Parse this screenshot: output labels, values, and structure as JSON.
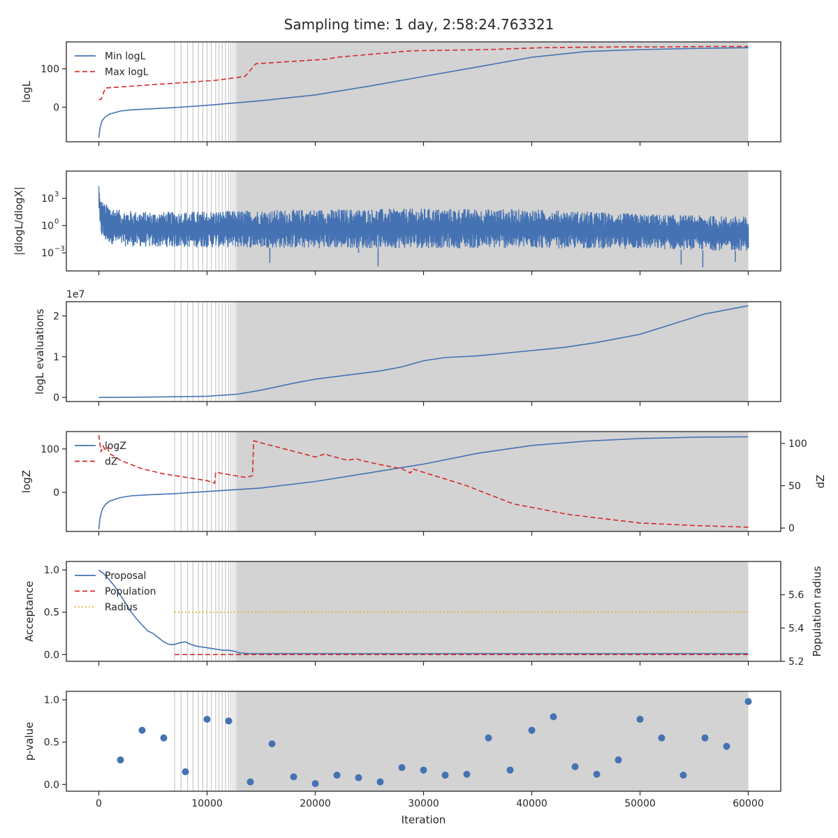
{
  "title": "Sampling time: 1 day, 2:58:24.763321",
  "colors": {
    "blue": "#4472b3",
    "red": "#d62728",
    "yellow": "#e8b020",
    "shade": "#d3d3d3",
    "vline": "#c8c8c8"
  },
  "chart_data": [
    {
      "type": "line",
      "ylabel": "logL",
      "xlim": [
        -3000,
        63000
      ],
      "ylim": [
        -90,
        170
      ],
      "yticks": [
        0,
        100
      ],
      "ytick_labels": [
        "0",
        "100"
      ],
      "shaded_region": [
        12800,
        60000
      ],
      "insertion_lines_x": [
        7000,
        7600,
        8200,
        8700,
        9200,
        9600,
        10000,
        10400,
        10800,
        11100,
        11400,
        11700,
        12000,
        12200,
        12400,
        12600,
        12750
      ],
      "legend": {
        "placement": "upper-left",
        "entries": [
          "Min logL",
          "Max logL"
        ]
      },
      "series": [
        {
          "name": "Min logL",
          "style": "solid",
          "color": "blue",
          "x": [
            0,
            100,
            300,
            600,
            1000,
            2000,
            3000,
            5000,
            7000,
            10000,
            15000,
            20000,
            25000,
            30000,
            35000,
            40000,
            45000,
            50000,
            55000,
            60000
          ],
          "y": [
            -80,
            -55,
            -35,
            -25,
            -18,
            -10,
            -7,
            -4,
            -1,
            5,
            17,
            32,
            55,
            80,
            105,
            130,
            145,
            150,
            153,
            155
          ]
        },
        {
          "name": "Max logL",
          "style": "dashed",
          "color": "red",
          "x": [
            0,
            200,
            600,
            10800,
            13500,
            14500,
            21000,
            22000,
            26000,
            27000,
            28000,
            29000,
            36000,
            38000,
            40000,
            41000,
            44000,
            48000,
            52000,
            56000,
            60000
          ],
          "y": [
            20,
            20,
            50,
            70,
            80,
            113,
            125,
            130,
            140,
            142,
            145,
            147,
            150,
            152,
            154,
            155,
            156,
            157,
            157,
            158,
            158
          ]
        }
      ]
    },
    {
      "type": "line",
      "ylabel": "|dlogL/dlogX|",
      "xlim": [
        -3000,
        63000
      ],
      "ylim_log10": [
        -5,
        6
      ],
      "yticks_log10": [
        -3,
        0,
        3
      ],
      "ytick_labels": [
        "10",
        "10",
        "10"
      ],
      "ytick_exponents": [
        "−3",
        "0",
        "3"
      ],
      "shaded_region": [
        12800,
        60000
      ],
      "legend": {
        "placement": "none",
        "entries": []
      },
      "series": [
        {
          "name": "",
          "style": "noisy-band",
          "color": "blue",
          "x": [
            0,
            100,
            500,
            2000,
            5000,
            10000,
            20000,
            30000,
            40000,
            50000,
            60000
          ],
          "upper_log10": [
            4.8,
            3.2,
            2.5,
            1.7,
            1.5,
            1.6,
            1.8,
            1.9,
            1.8,
            1.3,
            1.0
          ],
          "lower_log10": [
            1.5,
            -1.0,
            -1.8,
            -2.3,
            -2.4,
            -2.4,
            -2.5,
            -2.5,
            -2.5,
            -2.6,
            -2.8
          ],
          "spikes": [
            {
              "x": 15800,
              "y_log10": -4.1
            },
            {
              "x": 24000,
              "y_log10": -3.0
            },
            {
              "x": 25800,
              "y_log10": -4.5
            },
            {
              "x": 53800,
              "y_log10": -4.3
            },
            {
              "x": 55800,
              "y_log10": -4.6
            },
            {
              "x": 58800,
              "y_log10": -4.0
            }
          ]
        }
      ]
    },
    {
      "type": "line",
      "ylabel": "logL evaluations",
      "offset_text": "1e7",
      "xlim": [
        -3000,
        63000
      ],
      "ylim": [
        -0.1,
        2.35
      ],
      "yticks": [
        0,
        1,
        2
      ],
      "ytick_labels": [
        "0",
        "1",
        "2"
      ],
      "shaded_region": [
        12800,
        60000
      ],
      "legend": {
        "placement": "none",
        "entries": []
      },
      "series": [
        {
          "name": "",
          "style": "solid",
          "color": "blue",
          "x": [
            0,
            5000,
            10000,
            12800,
            15000,
            18000,
            20000,
            23000,
            26000,
            28000,
            30000,
            32000,
            35000,
            38000,
            40000,
            43000,
            46000,
            50000,
            53000,
            56000,
            60000
          ],
          "y": [
            0,
            0.01,
            0.03,
            0.08,
            0.18,
            0.35,
            0.45,
            0.55,
            0.65,
            0.75,
            0.9,
            0.98,
            1.02,
            1.1,
            1.15,
            1.23,
            1.35,
            1.55,
            1.8,
            2.05,
            2.25
          ]
        }
      ]
    },
    {
      "type": "line",
      "ylabel": "logZ",
      "ylabel_right": "dZ",
      "xlim": [
        -3000,
        63000
      ],
      "ylim": [
        -90,
        140
      ],
      "yticks": [
        0,
        100
      ],
      "ytick_labels": [
        "0",
        "100"
      ],
      "ylim_right": [
        -4,
        114
      ],
      "yticks_right": [
        0,
        50,
        100
      ],
      "ytick_labels_right": [
        "0",
        "50",
        "100"
      ],
      "shaded_region": [
        12800,
        60000
      ],
      "legend": {
        "placement": "upper-left",
        "entries": [
          "logZ",
          "dZ"
        ]
      },
      "series": [
        {
          "name": "logZ",
          "style": "solid",
          "color": "blue",
          "axis": "left",
          "x": [
            0,
            100,
            300,
            600,
            1000,
            2000,
            3000,
            5000,
            7000,
            10000,
            15000,
            20000,
            25000,
            30000,
            35000,
            40000,
            45000,
            50000,
            55000,
            60000
          ],
          "y": [
            -85,
            -60,
            -40,
            -28,
            -20,
            -12,
            -8,
            -5,
            -3,
            2,
            10,
            25,
            45,
            65,
            90,
            108,
            118,
            124,
            127,
            128
          ]
        },
        {
          "name": "dZ",
          "style": "dashed",
          "color": "red",
          "axis": "right",
          "x": [
            0,
            200,
            400,
            600,
            800,
            1000,
            2000,
            4000,
            6000,
            8000,
            10000,
            10700,
            10800,
            12500,
            13500,
            14000,
            14200,
            14300,
            20000,
            21000,
            21200,
            23000,
            23800,
            24000,
            24200,
            26000,
            28000,
            28800,
            29000,
            29200,
            32000,
            34000,
            36000,
            38000,
            38500,
            41000,
            43000,
            43500,
            46000,
            50000,
            55000,
            60000
          ],
          "y": [
            110,
            90,
            97,
            92,
            95,
            88,
            80,
            70,
            64,
            60,
            56,
            53,
            66,
            62,
            60,
            61,
            62,
            103,
            84,
            88,
            86,
            80,
            82,
            81,
            80,
            75,
            70,
            65,
            70,
            69,
            58,
            50,
            40,
            30,
            28,
            22,
            17,
            16,
            12,
            6,
            3,
            1
          ]
        }
      ]
    },
    {
      "type": "line",
      "ylabel": "Acceptance",
      "ylabel_right": "Population radius",
      "xlim": [
        -3000,
        63000
      ],
      "ylim": [
        -0.08,
        1.1
      ],
      "yticks": [
        0.0,
        0.5,
        1.0
      ],
      "ytick_labels": [
        "0.0",
        "0.5",
        "1.0"
      ],
      "ylim_right": [
        5.2,
        5.8
      ],
      "yticks_right": [
        5.2,
        5.4,
        5.6
      ],
      "ytick_labels_right": [
        "5.2",
        "5.4",
        "5.6"
      ],
      "shaded_region": [
        12800,
        60000
      ],
      "legend": {
        "placement": "upper-left",
        "entries": [
          "Proposal",
          "Population",
          "Radius"
        ]
      },
      "series": [
        {
          "name": "Proposal",
          "style": "solid",
          "color": "blue",
          "axis": "left",
          "x": [
            0,
            500,
            1000,
            1500,
            2000,
            2500,
            3000,
            3500,
            4000,
            4500,
            5000,
            5500,
            6000,
            6500,
            7000,
            7500,
            8000,
            8500,
            9000,
            9500,
            10000,
            10500,
            11000,
            11500,
            12000,
            12500,
            13000,
            14000,
            20000,
            30000,
            40000,
            50000,
            60000
          ],
          "y": [
            1.0,
            0.95,
            0.88,
            0.8,
            0.7,
            0.6,
            0.5,
            0.42,
            0.35,
            0.28,
            0.25,
            0.2,
            0.15,
            0.12,
            0.12,
            0.14,
            0.15,
            0.12,
            0.1,
            0.09,
            0.08,
            0.07,
            0.06,
            0.05,
            0.05,
            0.04,
            0.02,
            0.01,
            0.01,
            0.01,
            0.01,
            0.01,
            0.01
          ]
        },
        {
          "name": "Population",
          "style": "dashed",
          "color": "red",
          "axis": "left",
          "x": [
            7000,
            60000
          ],
          "y": [
            0.0,
            0.0
          ]
        },
        {
          "name": "Radius",
          "style": "dotted",
          "color": "yellow",
          "axis": "left",
          "x": [
            7000,
            60000
          ],
          "y": [
            0.5,
            0.5
          ]
        }
      ]
    },
    {
      "type": "scatter",
      "ylabel": "p-value",
      "xlabel": "Iteration",
      "xlim": [
        -3000,
        63000
      ],
      "ylim": [
        -0.08,
        1.1
      ],
      "yticks": [
        0.0,
        0.5,
        1.0
      ],
      "ytick_labels": [
        "0.0",
        "0.5",
        "1.0"
      ],
      "xticks": [
        0,
        10000,
        20000,
        30000,
        40000,
        50000,
        60000
      ],
      "xtick_labels": [
        "0",
        "10000",
        "20000",
        "30000",
        "40000",
        "50000",
        "60000"
      ],
      "shaded_region": [
        12800,
        60000
      ],
      "legend": {
        "placement": "none",
        "entries": []
      },
      "series": [
        {
          "name": "",
          "style": "dots",
          "color": "blue",
          "x": [
            2000,
            4000,
            6000,
            8000,
            10000,
            12000,
            14000,
            16000,
            18000,
            20000,
            22000,
            24000,
            26000,
            28000,
            30000,
            32000,
            34000,
            36000,
            38000,
            40000,
            42000,
            44000,
            46000,
            48000,
            50000,
            52000,
            54000,
            56000,
            58000,
            60000
          ],
          "y": [
            0.29,
            0.64,
            0.55,
            0.15,
            0.77,
            0.75,
            0.03,
            0.48,
            0.09,
            0.01,
            0.11,
            0.08,
            0.03,
            0.2,
            0.17,
            0.11,
            0.12,
            0.55,
            0.17,
            0.64,
            0.8,
            0.21,
            0.12,
            0.29,
            0.77,
            0.55,
            0.11,
            0.55,
            0.45,
            0.98
          ]
        }
      ]
    }
  ]
}
